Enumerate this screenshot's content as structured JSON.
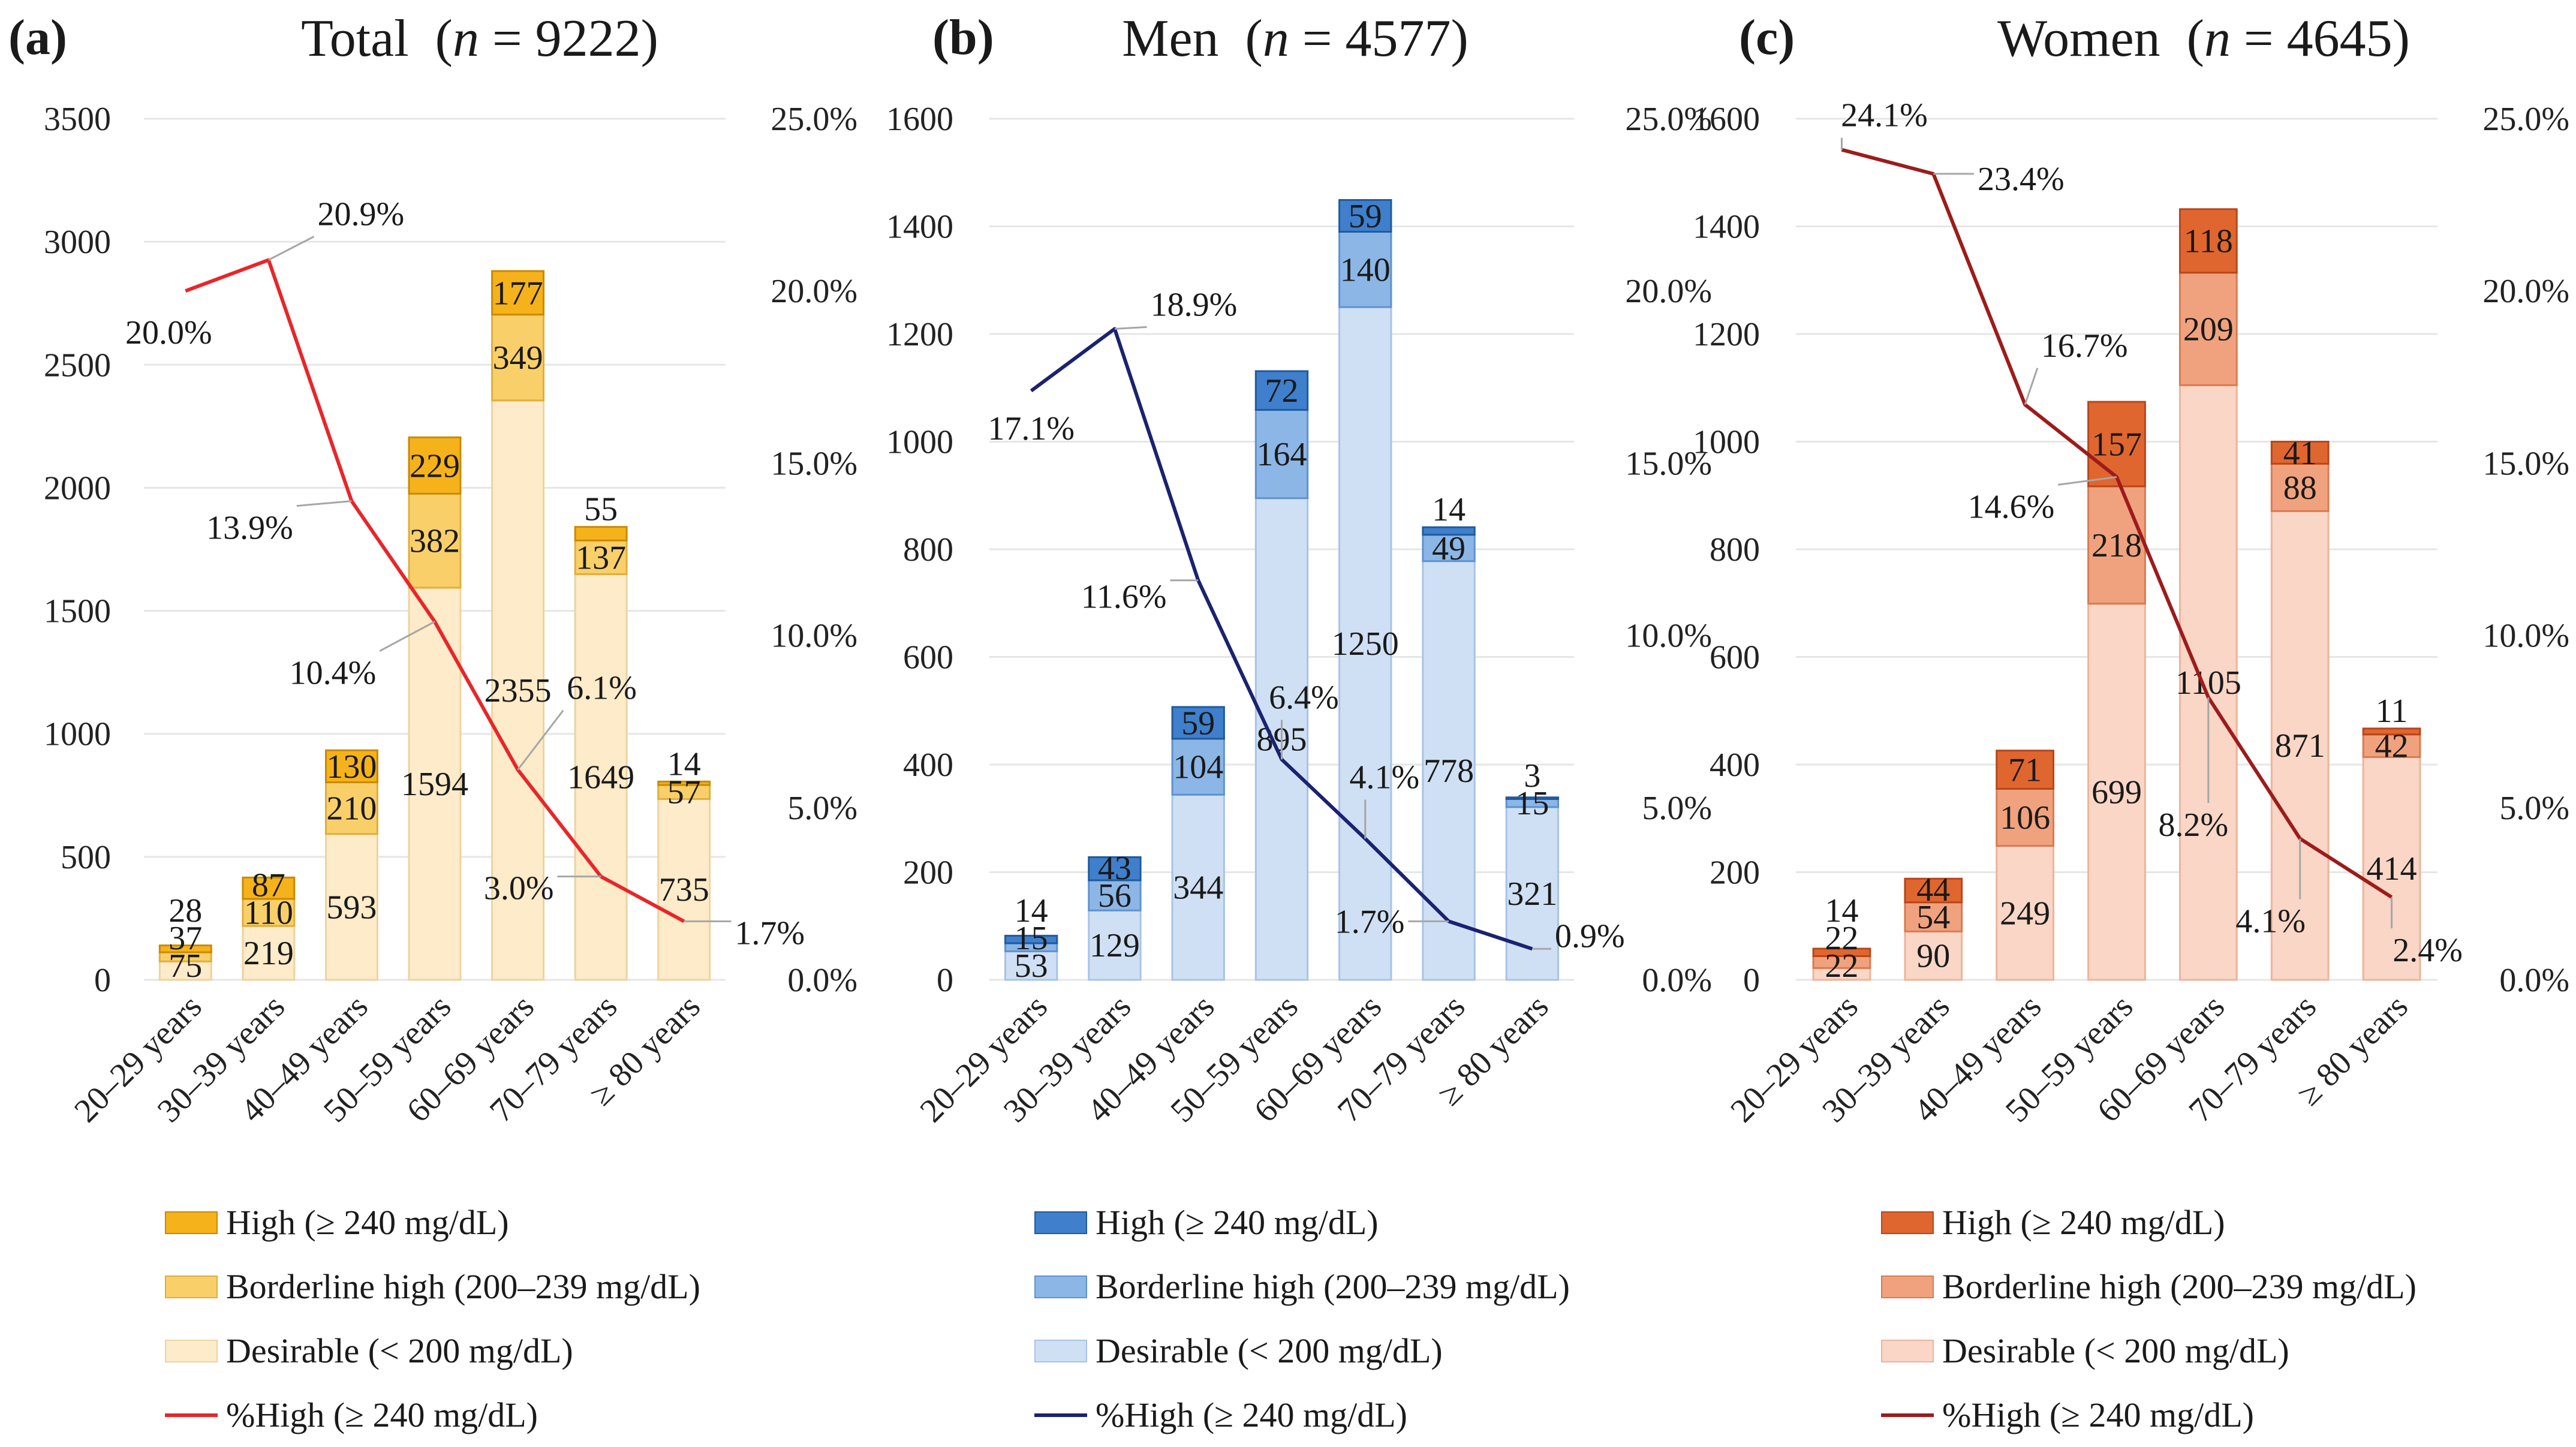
{
  "chart_data": [
    {
      "type": "bar",
      "panel_label": "(a)",
      "title": "Total",
      "n_symbol": "n",
      "n_value": "9222",
      "categories": [
        "20–29 years",
        "30–39 years",
        "40–49 years",
        "50–59 years",
        "60–69 years",
        "70–79 years",
        "≥ 80 years"
      ],
      "series": [
        {
          "name": "Desirable (< 200 mg/dL)",
          "values": [
            75,
            219,
            593,
            1594,
            2355,
            1649,
            735
          ],
          "color": "#FDEBC9"
        },
        {
          "name": "Borderline high (200–239 mg/dL)",
          "values": [
            37,
            110,
            210,
            382,
            349,
            137,
            57
          ],
          "color": "#F9CF6A"
        },
        {
          "name": "High (≥ 240 mg/dL)",
          "values": [
            28,
            87,
            130,
            229,
            177,
            55,
            14
          ],
          "color": "#F5B21B"
        }
      ],
      "line": {
        "name": "%High (≥ 240 mg/dL)",
        "values": [
          20.0,
          20.9,
          13.9,
          10.4,
          6.1,
          3.0,
          1.7
        ],
        "color": "#E8262A"
      },
      "ylim": [
        0,
        3500
      ],
      "yticks": [
        0,
        500,
        1000,
        1500,
        2000,
        2500,
        3000,
        3500
      ],
      "y2lim": [
        0,
        25
      ],
      "y2ticks": [
        "0.0%",
        "5.0%",
        "10.0%",
        "15.0%",
        "20.0%",
        "25.0%"
      ],
      "grid": true,
      "legend_placement": "bottom"
    },
    {
      "type": "bar",
      "panel_label": "(b)",
      "title": "Men",
      "n_symbol": "n",
      "n_value": "4577",
      "categories": [
        "20–29 years",
        "30–39 years",
        "40–49 years",
        "50–59 years",
        "60–69 years",
        "70–79 years",
        "≥ 80 years"
      ],
      "series": [
        {
          "name": "Desirable (< 200 mg/dL)",
          "values": [
            53,
            129,
            344,
            895,
            1250,
            778,
            321
          ],
          "color": "#CFE0F4"
        },
        {
          "name": "Borderline high (200–239 mg/dL)",
          "values": [
            15,
            56,
            104,
            164,
            140,
            49,
            15
          ],
          "color": "#8BB6E6"
        },
        {
          "name": "High (≥ 240 mg/dL)",
          "values": [
            14,
            43,
            59,
            72,
            59,
            14,
            3
          ],
          "color": "#3F7FCC"
        }
      ],
      "line": {
        "name": "%High (≥ 240 mg/dL)",
        "values": [
          17.1,
          18.9,
          11.6,
          6.4,
          4.1,
          1.7,
          0.9
        ],
        "color": "#1A2370"
      },
      "ylim": [
        0,
        1600
      ],
      "yticks": [
        0,
        200,
        400,
        600,
        800,
        1000,
        1200,
        1400,
        1600
      ],
      "y2lim": [
        0,
        25
      ],
      "y2ticks": [
        "0.0%",
        "5.0%",
        "10.0%",
        "15.0%",
        "20.0%",
        "25.0%"
      ],
      "grid": true,
      "legend_placement": "bottom"
    },
    {
      "type": "bar",
      "panel_label": "(c)",
      "title": "Women",
      "n_symbol": "n",
      "n_value": "4645",
      "categories": [
        "20–29 years",
        "30–39 years",
        "40–49 years",
        "50–59 years",
        "60–69 years",
        "70–79 years",
        "≥ 80 years"
      ],
      "series": [
        {
          "name": "Desirable (< 200 mg/dL)",
          "values": [
            22,
            90,
            249,
            699,
            1105,
            871,
            414
          ],
          "color": "#F9D6C6"
        },
        {
          "name": "Borderline high (200–239 mg/dL)",
          "values": [
            22,
            54,
            106,
            218,
            209,
            88,
            42
          ],
          "color": "#F0A27E"
        },
        {
          "name": "High (≥ 240 mg/dL)",
          "values": [
            14,
            44,
            71,
            157,
            118,
            41,
            11
          ],
          "color": "#E0662F"
        }
      ],
      "line": {
        "name": "%High (≥ 240 mg/dL)",
        "values": [
          24.1,
          23.4,
          16.7,
          14.6,
          8.2,
          4.1,
          2.4
        ],
        "color": "#9E1B1B"
      },
      "ylim": [
        0,
        1600
      ],
      "yticks": [
        0,
        200,
        400,
        600,
        800,
        1000,
        1200,
        1400,
        1600
      ],
      "y2lim": [
        0,
        25
      ],
      "y2ticks": [
        "0.0%",
        "5.0%",
        "10.0%",
        "15.0%",
        "20.0%",
        "25.0%"
      ],
      "grid": true,
      "legend_placement": "bottom"
    }
  ]
}
